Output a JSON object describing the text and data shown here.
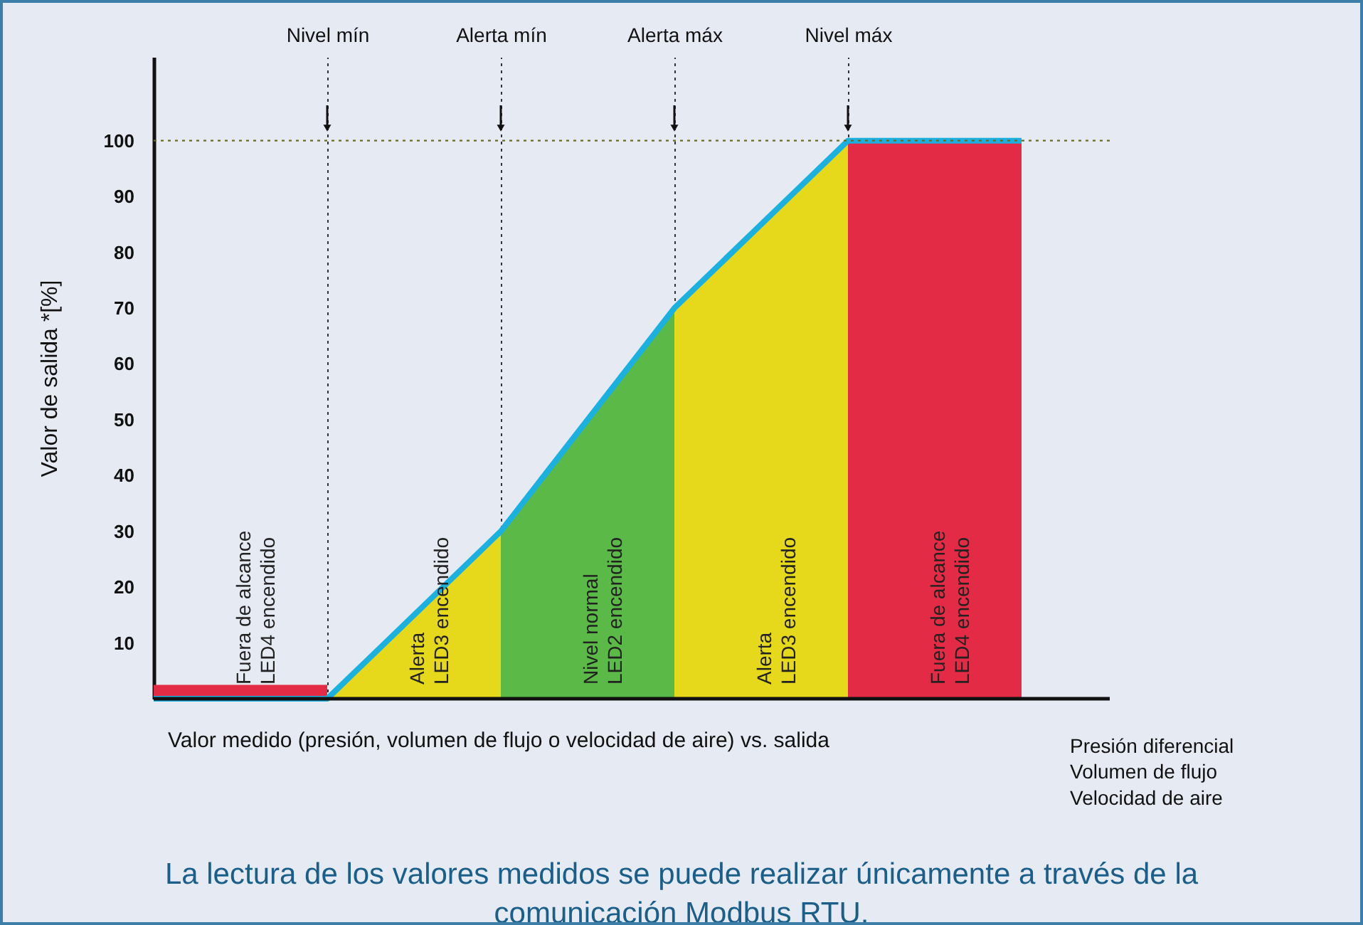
{
  "chart_data": {
    "type": "area",
    "xlabel": "Valor medido (presión, volumen de flujo o velocidad de aire) vs. salida",
    "ylabel": "Valor de salida *[%]",
    "categories": [
      null,
      "Nivel mín",
      "Alerta mín",
      "Alerta máx",
      "Nivel máx",
      null
    ],
    "ylim": [
      0,
      115
    ],
    "yticks": [
      10,
      20,
      30,
      40,
      50,
      60,
      70,
      80,
      90,
      100
    ],
    "grid": "x",
    "line_style": "solid",
    "series": [
      {
        "color": "#e32b45",
        "values": [
          2.5,
          2.5,
          null,
          null,
          null,
          null
        ]
      },
      {
        "color": "#e6d81a",
        "values": [
          null,
          0,
          30,
          null,
          null,
          null
        ]
      },
      {
        "color": "#5bb947",
        "values": [
          null,
          null,
          30,
          70,
          null,
          null
        ]
      },
      {
        "color": "#e6d81a",
        "values": [
          null,
          null,
          null,
          70,
          100,
          null
        ]
      },
      {
        "color": "#e32b45",
        "values": [
          null,
          null,
          null,
          null,
          100,
          100
        ]
      },
      {
        "type": "line",
        "color": "#1ab0e0",
        "values": [
          0,
          0,
          30,
          70,
          100,
          100
        ]
      }
    ],
    "ref_lines": [
      {
        "axis": "y",
        "value": 100,
        "line_style": "dotted",
        "color": "#6b6b20"
      }
    ],
    "annotations": [
      "Fuera de alcance\nLED4 encendido",
      "Alerta\nLED3 encendido",
      "Nivel normal\nLED2 encendido",
      "Alerta\nLED3 encendido",
      "Fuera de alcance\nLED4 encendido",
      "Presión diferencial\nVolumen de flujo\nVelocidad de aire",
      "La lectura de los valores medidos se puede realizar únicamente a través de la\ncomunicación Modbus RTU."
    ]
  }
}
